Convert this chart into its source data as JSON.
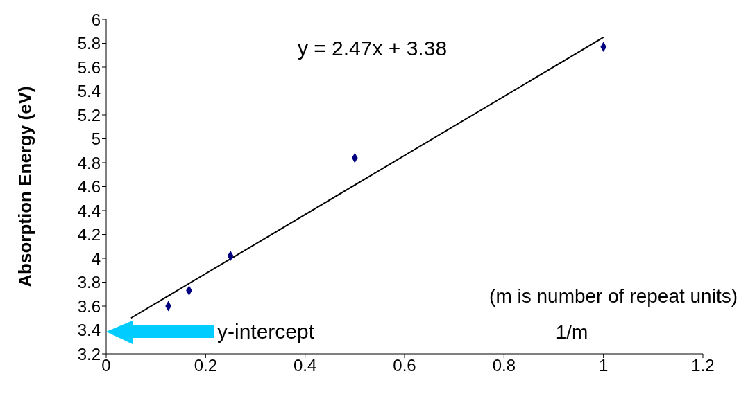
{
  "chart_data": {
    "type": "scatter",
    "ylabel": "Absorption Energy (eV)",
    "xlabel": "1/m",
    "annotations": [
      "y = 2.47x + 3.38",
      "(m is number of repeat units)",
      "y-intercept"
    ],
    "xlim": [
      0,
      1.2
    ],
    "xticks": [
      0,
      0.2,
      0.4,
      0.6,
      0.8,
      1,
      1.2
    ],
    "ylim": [
      3.2,
      6
    ],
    "yticks": [
      3.2,
      3.4,
      3.6,
      3.8,
      4,
      4.2,
      4.4,
      4.6,
      4.8,
      5,
      5.2,
      5.4,
      5.6,
      5.8,
      6
    ],
    "marker": "diamond",
    "series": [
      {
        "color": "#000080",
        "x": [
          0.125,
          0.1667,
          0.25,
          0.5,
          1
        ],
        "values": [
          3.6,
          3.73,
          4.02,
          4.84,
          5.77
        ]
      },
      {
        "type": "line",
        "color": "#000000",
        "marker": "none",
        "x": [
          0.05,
          1
        ],
        "values": [
          3.5,
          5.85
        ]
      }
    ]
  }
}
